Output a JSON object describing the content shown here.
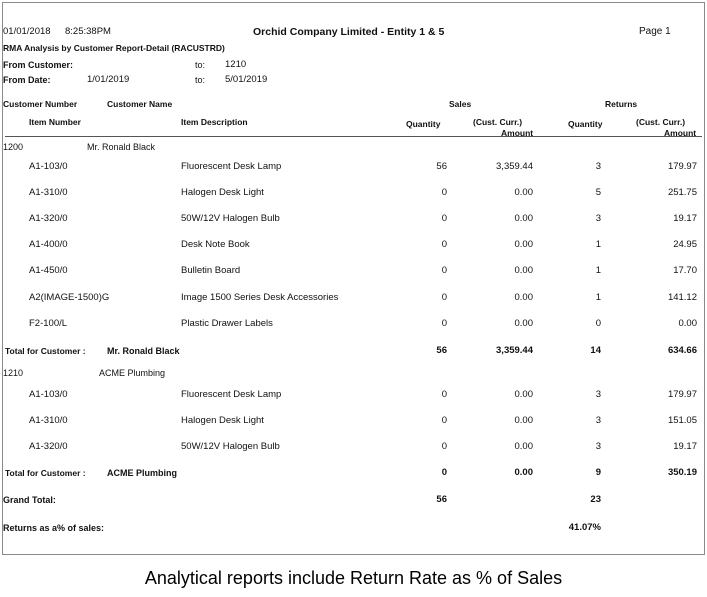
{
  "header": {
    "date": "01/01/2018",
    "time": "8:25:38PM",
    "company": "Orchid Company Limited - Entity 1 & 5",
    "page": "Page 1",
    "report_title": "RMA Analysis by Customer Report-Detail (RACUSTRD)",
    "from_customer_label": "From Customer:",
    "to_label_1": "to:",
    "to_customer": "1210",
    "from_date_label": "From Date:",
    "from_date": "1/01/2019",
    "to_label_2": "to:",
    "to_date": "5/01/2019"
  },
  "columns": {
    "customer_number": "Customer Number",
    "customer_name": "Customer Name",
    "sales": "Sales",
    "returns": "Returns",
    "item_number": "Item Number",
    "item_description": "Item Description",
    "sales_quantity": "Quantity",
    "sales_amount_1": "(Cust. Curr.)",
    "sales_amount_2": "Amount",
    "returns_quantity": "Quantity",
    "returns_amount_1": "(Cust. Curr.)",
    "returns_amount_2": "Amount"
  },
  "customers": [
    {
      "number": "1200",
      "name": "Mr. Ronald Black",
      "items": [
        {
          "item": "A1-103/0",
          "desc": "Fluorescent Desk Lamp",
          "sqty": "56",
          "samt": "3,359.44",
          "rqty": "3",
          "ramt": "179.97"
        },
        {
          "item": "A1-310/0",
          "desc": "Halogen Desk Light",
          "sqty": "0",
          "samt": "0.00",
          "rqty": "5",
          "ramt": "251.75"
        },
        {
          "item": "A1-320/0",
          "desc": "50W/12V Halogen Bulb",
          "sqty": "0",
          "samt": "0.00",
          "rqty": "3",
          "ramt": "19.17"
        },
        {
          "item": "A1-400/0",
          "desc": "Desk Note Book",
          "sqty": "0",
          "samt": "0.00",
          "rqty": "1",
          "ramt": "24.95"
        },
        {
          "item": "A1-450/0",
          "desc": "Bulletin Board",
          "sqty": "0",
          "samt": "0.00",
          "rqty": "1",
          "ramt": "17.70"
        },
        {
          "item": "A2(IMAGE-1500)G",
          "desc": "Image 1500 Series Desk Accessories",
          "sqty": "0",
          "samt": "0.00",
          "rqty": "1",
          "ramt": "141.12"
        },
        {
          "item": "F2-100/L",
          "desc": "Plastic Drawer Labels",
          "sqty": "0",
          "samt": "0.00",
          "rqty": "0",
          "ramt": "0.00"
        }
      ],
      "total_label": "Total for Customer :",
      "total_name": "Mr. Ronald Black",
      "total_sqty": "56",
      "total_samt": "3,359.44",
      "total_rqty": "14",
      "total_ramt": "634.66"
    },
    {
      "number": "1210",
      "name": "ACME Plumbing",
      "items": [
        {
          "item": "A1-103/0",
          "desc": "Fluorescent Desk Lamp",
          "sqty": "0",
          "samt": "0.00",
          "rqty": "3",
          "ramt": "179.97"
        },
        {
          "item": "A1-310/0",
          "desc": "Halogen Desk Light",
          "sqty": "0",
          "samt": "0.00",
          "rqty": "3",
          "ramt": "151.05"
        },
        {
          "item": "A1-320/0",
          "desc": "50W/12V Halogen Bulb",
          "sqty": "0",
          "samt": "0.00",
          "rqty": "3",
          "ramt": "19.17"
        }
      ],
      "total_label": "Total for Customer :",
      "total_name": "ACME Plumbing",
      "total_sqty": "0",
      "total_samt": "0.00",
      "total_rqty": "9",
      "total_ramt": "350.19"
    }
  ],
  "grand_total": {
    "label": "Grand Total:",
    "sqty": "56",
    "rqty": "23"
  },
  "returns_pct": {
    "label": "Returns as a% of sales:",
    "value": "41.07%"
  },
  "caption": "Analytical reports include Return Rate as % of Sales"
}
